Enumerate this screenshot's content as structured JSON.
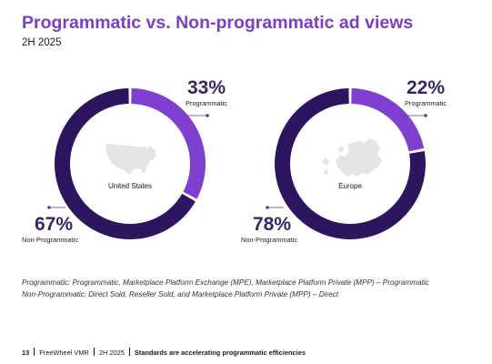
{
  "header": {
    "title": "Programmatic vs. Non-programmatic ad views",
    "subtitle": "2H 2025"
  },
  "colors": {
    "programmatic": "#7f3fd0",
    "non_programmatic": "#2d1560",
    "map": "#e4e4e4",
    "title": "#7b3fc4"
  },
  "chart_data": [
    {
      "type": "pie",
      "center_label": "United States",
      "categories": [
        "Programmatic",
        "Non-Programmatic"
      ],
      "values": [
        33,
        67
      ],
      "value_labels": [
        "33%",
        "67%"
      ],
      "icon": "us-map-icon"
    },
    {
      "type": "pie",
      "center_label": "Europe",
      "categories": [
        "Programmatic",
        "Non-Programmatic"
      ],
      "values": [
        22,
        78
      ],
      "value_labels": [
        "22%",
        "78%"
      ],
      "icon": "europe-map-icon"
    }
  ],
  "notes": {
    "line1": "Programmatic: Programmatic, Marketplace Platform Exchange (MPE), Marketplace Platform Private (MPP) – Programmatic",
    "line2": "Non-Programmatic: Direct Sold, Reseller Sold, and Marketplace Platform Private (MPP) – Direct"
  },
  "footer": {
    "page": "13",
    "brand": "FreeWheel VMR",
    "period": "2H 2025",
    "section": "Standards are accelerating programmatic efficiencies"
  }
}
